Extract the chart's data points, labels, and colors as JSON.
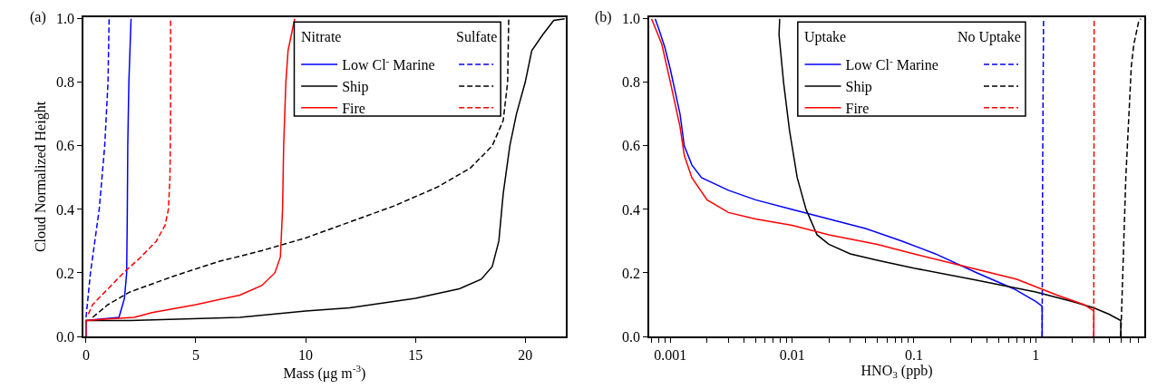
{
  "chart_data": [
    {
      "type": "line",
      "ylabel": "Cloud Normalized Height",
      "xlabel": "Mass (μg m$^{-3}$)",
      "annotations": [
        "(a)",
        "Nitrate",
        "Sulfate"
      ],
      "legend": "top right",
      "xlim": [
        -0.12,
        21.85
      ],
      "xticks": [
        0,
        5,
        10,
        15,
        20
      ],
      "ylim": [
        0,
        1.005
      ],
      "yticks": [
        {
          "value": 0,
          "label": "0.0"
        },
        {
          "value": 0.2,
          "label": "0.2"
        },
        {
          "value": 0.4,
          "label": "0.4"
        },
        {
          "value": 0.6,
          "label": "0.6"
        },
        {
          "value": 0.8,
          "label": "0.8"
        },
        {
          "value": 1,
          "label": "1.0"
        }
      ],
      "grid": false,
      "series": [
        {
          "name": "Low Cl$^{-}$ Marine",
          "color": "#0000ff",
          "line_style": "solid",
          "x": [
            0,
            0,
            1.5,
            1.75,
            1.85,
            1.88,
            1.9,
            1.95,
            2.05
          ],
          "values": [
            0,
            0.05,
            0.06,
            0.12,
            0.2,
            0.4,
            0.6,
            0.8,
            1.0
          ]
        },
        {
          "name": "Ship",
          "color": "#000000",
          "line_style": "solid",
          "x": [
            0,
            2,
            7,
            10,
            12,
            15,
            17,
            18,
            18.5,
            18.8,
            19,
            19.3,
            19.6,
            20,
            20.3,
            20.8,
            21.3,
            21.8
          ],
          "values": [
            0.05,
            0.05,
            0.06,
            0.08,
            0.09,
            0.12,
            0.15,
            0.18,
            0.22,
            0.3,
            0.45,
            0.6,
            0.7,
            0.8,
            0.9,
            0.95,
            0.995,
            1.0
          ]
        },
        {
          "name": "Fire",
          "color": "#ff0000",
          "line_style": "solid",
          "x": [
            0,
            0,
            1,
            2.2,
            3,
            5,
            7,
            8,
            8.6,
            8.85,
            8.95,
            9.0,
            9.1,
            9.2,
            9.5
          ],
          "values": [
            0,
            0.05,
            0.055,
            0.06,
            0.075,
            0.1,
            0.13,
            0.16,
            0.2,
            0.25,
            0.4,
            0.6,
            0.8,
            0.9,
            1.0
          ]
        },
        {
          "color": "#0000ff",
          "line_style": "dashed",
          "x": [
            0,
            0.2,
            0.6,
            0.85,
            1.0,
            1.05
          ],
          "values": [
            0.06,
            0.2,
            0.4,
            0.6,
            0.8,
            1.0
          ]
        },
        {
          "color": "#000000",
          "line_style": "dashed",
          "x": [
            0.3,
            1,
            2,
            4,
            6,
            8,
            10,
            12,
            14,
            16,
            17.5,
            18.5,
            19,
            19.2,
            19.25
          ],
          "values": [
            0.06,
            0.1,
            0.14,
            0.19,
            0.235,
            0.27,
            0.31,
            0.36,
            0.41,
            0.47,
            0.53,
            0.6,
            0.68,
            0.8,
            1.0
          ]
        },
        {
          "color": "#ff0000",
          "line_style": "dashed",
          "x": [
            0.1,
            0.3,
            1.0,
            1.7,
            2.5,
            3.2,
            3.6,
            3.75,
            3.82,
            3.85,
            3.85
          ],
          "values": [
            0.07,
            0.1,
            0.15,
            0.2,
            0.25,
            0.3,
            0.35,
            0.4,
            0.5,
            0.7,
            1.0
          ]
        }
      ]
    },
    {
      "type": "line",
      "xlabel": "HNO$_{3}$ (ppb)",
      "annotations": [
        "(b)",
        "Uptake",
        "No Uptake"
      ],
      "legend": "top",
      "log": "x",
      "xlim": [
        0.00067,
        7.8
      ],
      "xticks": [
        {
          "value": 0.0007,
          "label": null
        },
        {
          "value": 0.0008,
          "label": null
        },
        {
          "value": 0.0009,
          "label": null
        },
        0.001,
        {
          "value": 0.002,
          "label": null
        },
        {
          "value": 0.003,
          "label": null
        },
        {
          "value": 0.004,
          "label": null
        },
        {
          "value": 0.005,
          "label": null
        },
        {
          "value": 0.006,
          "label": null
        },
        {
          "value": 0.007,
          "label": null
        },
        {
          "value": 0.008,
          "label": null
        },
        {
          "value": 0.009,
          "label": null
        },
        0.01,
        {
          "value": 0.02,
          "label": null
        },
        {
          "value": 0.03,
          "label": null
        },
        {
          "value": 0.04,
          "label": null
        },
        {
          "value": 0.05,
          "label": null
        },
        {
          "value": 0.06,
          "label": null
        },
        {
          "value": 0.07,
          "label": null
        },
        {
          "value": 0.08,
          "label": null
        },
        {
          "value": 0.09,
          "label": null
        },
        0.1,
        {
          "value": 0.2,
          "label": null
        },
        {
          "value": 0.3,
          "label": null
        },
        {
          "value": 0.4,
          "label": null
        },
        {
          "value": 0.5,
          "label": null
        },
        {
          "value": 0.6,
          "label": null
        },
        {
          "value": 0.7,
          "label": null
        },
        {
          "value": 0.8,
          "label": null
        },
        {
          "value": 0.9,
          "label": null
        },
        1,
        {
          "value": 2,
          "label": null
        },
        {
          "value": 3,
          "label": null
        },
        {
          "value": 4,
          "label": null
        },
        {
          "value": 5,
          "label": null
        },
        {
          "value": 6,
          "label": null
        },
        {
          "value": 7,
          "label": null
        }
      ],
      "ylim": [
        0,
        1.005
      ],
      "yticks": [
        {
          "value": 0,
          "label": "0.0"
        },
        {
          "value": 0.2,
          "label": "0.2"
        },
        {
          "value": 0.4,
          "label": "0.4"
        },
        {
          "value": 0.6,
          "label": "0.6"
        },
        {
          "value": 0.8,
          "label": "0.8"
        },
        {
          "value": 1,
          "label": "1.0"
        }
      ],
      "grid": false,
      "series": [
        {
          "name": "Low Cl$^{-}$ Marine",
          "color": "#0000ff",
          "line_style": "solid",
          "x": [
            0.00075,
            0.0008,
            0.0009,
            0.001,
            0.0012,
            0.0013,
            0.0015,
            0.0018,
            0.003,
            0.005,
            0.01,
            0.02,
            0.04,
            0.08,
            0.15,
            0.33,
            0.66,
            1.0,
            1.13,
            1.13
          ],
          "values": [
            1,
            0.97,
            0.91,
            0.84,
            0.7,
            0.6,
            0.54,
            0.5,
            0.46,
            0.43,
            0.4,
            0.37,
            0.34,
            0.3,
            0.26,
            0.2,
            0.15,
            0.11,
            0.095,
            0
          ]
        },
        {
          "name": "Ship",
          "color": "#000000",
          "line_style": "solid",
          "x": [
            0.0079,
            0.0078,
            0.0085,
            0.0095,
            0.011,
            0.013,
            0.016,
            0.02,
            0.03,
            0.05,
            0.1,
            0.3,
            1,
            2,
            3,
            4,
            5,
            5
          ],
          "values": [
            1,
            0.95,
            0.8,
            0.65,
            0.5,
            0.4,
            0.32,
            0.29,
            0.26,
            0.24,
            0.215,
            0.18,
            0.14,
            0.11,
            0.09,
            0.07,
            0.05,
            0
          ]
        },
        {
          "name": "Fire",
          "color": "#ff0000",
          "line_style": "solid",
          "x": [
            0.0007,
            0.00085,
            0.001,
            0.0012,
            0.0013,
            0.0015,
            0.002,
            0.003,
            0.005,
            0.01,
            0.02,
            0.05,
            0.1,
            0.3,
            0.7,
            1.5,
            2.5,
            3,
            3
          ],
          "values": [
            1,
            0.92,
            0.8,
            0.66,
            0.57,
            0.5,
            0.43,
            0.39,
            0.37,
            0.35,
            0.32,
            0.29,
            0.26,
            0.215,
            0.18,
            0.13,
            0.1,
            0.08,
            0
          ]
        },
        {
          "color": "#0000ff",
          "line_style": "dashed",
          "x": [
            1.13,
            1.14,
            1.16
          ],
          "values": [
            0,
            0.5,
            1.0
          ]
        },
        {
          "color": "#000000",
          "line_style": "dashed",
          "x": [
            5,
            5.5,
            6.1,
            6.4,
            7.0,
            7.3
          ],
          "values": [
            0,
            0.5,
            0.85,
            0.92,
            0.99,
            1.0
          ]
        },
        {
          "color": "#ff0000",
          "line_style": "dashed",
          "x": [
            3.0,
            3.02
          ],
          "values": [
            0,
            1.0
          ]
        }
      ]
    }
  ]
}
